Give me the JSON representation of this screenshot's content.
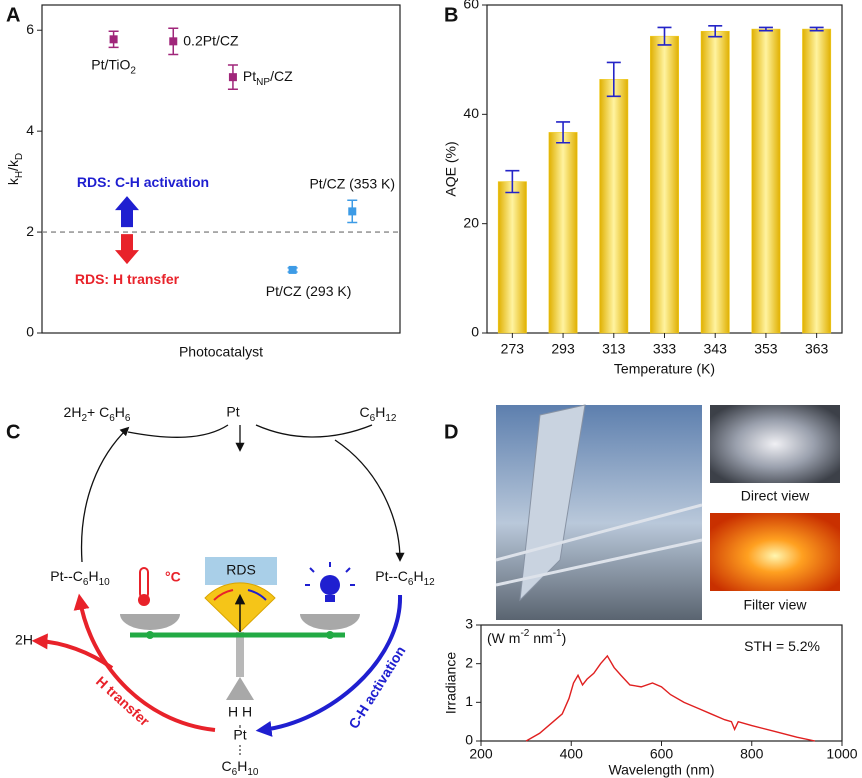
{
  "panel_letters": [
    "A",
    "B",
    "C",
    "D"
  ],
  "chart_data": [
    {
      "type": "scatter",
      "xlabel": "Photocatalyst",
      "ylabel": [
        {
          "text": "k"
        },
        {
          "text": "H",
          "script": "sub"
        },
        {
          "text": "/k"
        },
        {
          "text": "D",
          "script": "sub"
        }
      ],
      "x": [
        1.2,
        2.2,
        3.2,
        4.2,
        5.2
      ],
      "values": [
        5.82,
        5.78,
        5.07,
        1.25,
        2.41
      ],
      "errors": [
        0.16,
        0.26,
        0.24,
        0.04,
        0.22
      ],
      "colors": [
        "#a0267a",
        "#a0267a",
        "#a0267a",
        "#3d9be6",
        "#3d9be6"
      ],
      "point_labels": [
        [
          {
            "text": "Pt/TiO"
          },
          {
            "text": "2",
            "script": "sub"
          }
        ],
        [
          {
            "text": "0.2Pt/CZ"
          }
        ],
        [
          {
            "text": "Pt"
          },
          {
            "text": "NP",
            "script": "sub"
          },
          {
            "text": "/CZ"
          }
        ],
        [
          {
            "text": "Pt/CZ (293 K)"
          }
        ],
        [
          {
            "text": "Pt/CZ (353 K)"
          }
        ]
      ],
      "xlim": [
        0,
        6
      ],
      "ylim": [
        0,
        6.5
      ],
      "yticks": [
        0,
        2,
        4,
        6
      ],
      "reference_line": 2,
      "annotations": [
        {
          "text": "RDS: C-H activation",
          "color": "#1f1fd0"
        },
        {
          "text": "RDS: H transfer",
          "color": "#e8222a"
        }
      ]
    },
    {
      "type": "bar",
      "xlabel": "Temperature (K)",
      "ylabel": "AQE (%)",
      "categories": [
        "273",
        "293",
        "313",
        "333",
        "343",
        "353",
        "363"
      ],
      "values": [
        27.7,
        36.7,
        46.4,
        54.3,
        55.2,
        55.6,
        55.6
      ],
      "errors": [
        2.0,
        1.9,
        3.1,
        1.6,
        1.0,
        0.3,
        0.3
      ],
      "color": "#f2cc1a",
      "error_color": "#2424c8",
      "ylim": [
        0,
        60
      ],
      "yticks": [
        0,
        20,
        40,
        60
      ]
    },
    {
      "type": "line",
      "xlabel": "Wavelength (nm)",
      "ylabel": "Irradiance",
      "x": [
        300,
        330,
        360,
        380,
        395,
        405,
        415,
        425,
        435,
        450,
        465,
        480,
        495,
        510,
        530,
        555,
        580,
        600,
        620,
        650,
        680,
        710,
        740,
        755,
        762,
        770,
        800,
        850,
        900,
        940
      ],
      "values": [
        0,
        0.2,
        0.5,
        0.7,
        1.1,
        1.5,
        1.7,
        1.45,
        1.6,
        1.75,
        2.0,
        2.2,
        1.9,
        1.7,
        1.45,
        1.4,
        1.5,
        1.4,
        1.2,
        1.0,
        0.85,
        0.7,
        0.55,
        0.5,
        0.3,
        0.5,
        0.4,
        0.25,
        0.1,
        0
      ],
      "color": "#e02020",
      "xlim": [
        200,
        1000
      ],
      "xticks": [
        200,
        400,
        600,
        800,
        1000
      ],
      "ylim": [
        0,
        3
      ],
      "yticks": [
        0,
        1,
        2,
        3
      ],
      "annotations": [
        [
          {
            "text": "(W m"
          },
          {
            "text": "-2",
            "script": "sup"
          },
          {
            "text": " nm"
          },
          {
            "text": "-1",
            "script": "sup"
          },
          {
            "text": ")"
          }
        ],
        [
          {
            "text": "STH = 5.2%"
          }
        ]
      ]
    }
  ],
  "diagram": {
    "products": [
      {
        "text": "2H"
      },
      {
        "text": "2",
        "script": "sub"
      },
      {
        "text": "+ C"
      },
      {
        "text": "6",
        "script": "sub"
      },
      {
        "text": "H"
      },
      {
        "text": "6",
        "script": "sub"
      }
    ],
    "catalyst": "Pt",
    "reactant": [
      {
        "text": "C"
      },
      {
        "text": "6",
        "script": "sub"
      },
      {
        "text": "H"
      },
      {
        "text": "12",
        "script": "sub"
      }
    ],
    "left_intermediate": [
      {
        "text": "Pt--C"
      },
      {
        "text": "6",
        "script": "sub"
      },
      {
        "text": "H"
      },
      {
        "text": "10",
        "script": "sub"
      }
    ],
    "right_intermediate": [
      {
        "text": "Pt--C"
      },
      {
        "text": "6",
        "script": "sub"
      },
      {
        "text": "H"
      },
      {
        "text": "12",
        "script": "sub"
      }
    ],
    "rds": "RDS",
    "temperature_unit": "°C",
    "hydrogen": "2H",
    "left_arrow": "H transfer",
    "right_arrow": "C-H activation",
    "bottom_h": "H   H",
    "bottom_pt": "Pt",
    "bottom_fragment": [
      {
        "text": "C"
      },
      {
        "text": "6",
        "script": "sub"
      },
      {
        "text": "H"
      },
      {
        "text": "10",
        "script": "sub"
      }
    ]
  },
  "photos": {
    "captions": [
      "Direct view",
      "Filter view"
    ]
  }
}
